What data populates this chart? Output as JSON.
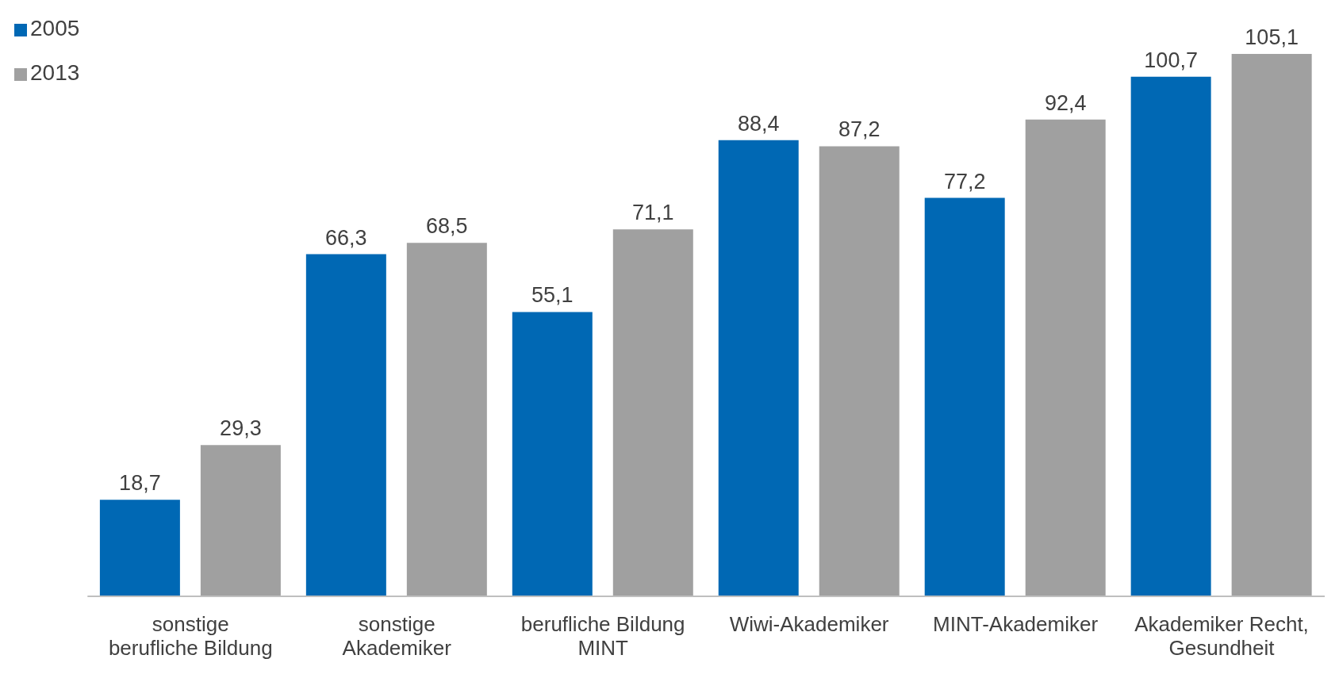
{
  "chart_data": {
    "type": "bar",
    "categories": [
      "sonstige berufliche Bildung",
      "sonstige Akademiker",
      "berufliche Bildung MINT",
      "Wiwi-Akademiker",
      "MINT-Akademiker",
      "Akademiker Recht, Gesundheit"
    ],
    "series": [
      {
        "name": "2005",
        "color": "#0068b4",
        "values": [
          18.7,
          66.3,
          55.1,
          88.4,
          77.2,
          100.7
        ],
        "value_labels": [
          "18,7",
          "66,3",
          "55,1",
          "88,4",
          "77,2",
          "100,7"
        ]
      },
      {
        "name": "2013",
        "color": "#a0a0a0",
        "values": [
          29.3,
          68.5,
          71.1,
          87.2,
          92.4,
          105.1
        ],
        "value_labels": [
          "29,3",
          "68,5",
          "71,1",
          "87,2",
          "92,4",
          "105,1"
        ]
      }
    ],
    "legend": "top left"
  }
}
